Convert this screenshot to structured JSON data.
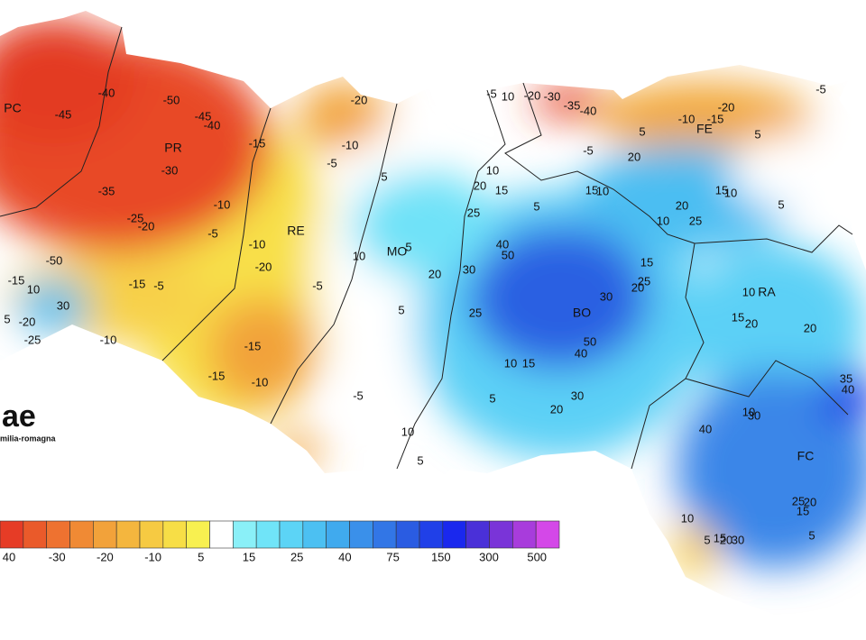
{
  "logo": {
    "text": "ae",
    "subtitle": "milia-romagna"
  },
  "provinces": [
    {
      "label": "PC"
    },
    {
      "label": "PR"
    },
    {
      "label": "RE"
    },
    {
      "label": "MO"
    },
    {
      "label": "BO"
    },
    {
      "label": "FE"
    },
    {
      "label": "RA"
    },
    {
      "label": "FC"
    }
  ],
  "contour_labels": [
    "-45",
    "-40",
    "-50",
    "-45",
    "-40",
    "-30",
    "-35",
    "-25",
    "-20",
    "-10",
    "-5",
    "-15",
    "-5",
    "-50",
    "-15",
    "10",
    "30",
    "-20",
    "-25",
    "5",
    "-10",
    "-20",
    "-10",
    "-5",
    "-15",
    "-10",
    "-20",
    "-15",
    "-10",
    "-15",
    "-5",
    "5",
    "10",
    "5",
    "20",
    "5",
    "-5",
    "10",
    "5",
    "10",
    "20",
    "15",
    "25",
    "5",
    "40",
    "50",
    "30",
    "25",
    "30",
    "20",
    "25",
    "15",
    "50",
    "40",
    "10",
    "15",
    "5",
    "30",
    "20",
    "-5",
    "10",
    "-20",
    "-30",
    "-35",
    "-40",
    "-20",
    "-10",
    "-15",
    "5",
    "-5",
    "5",
    "20",
    "-5",
    "15",
    "10",
    "10",
    "20",
    "25",
    "15",
    "10",
    "5",
    "10",
    "15",
    "20",
    "20",
    "35",
    "40",
    "40",
    "10",
    "30",
    "25",
    "20",
    "15",
    "10",
    "5",
    "15",
    "20",
    "30",
    "5"
  ],
  "legend": {
    "labels": [
      40,
      -30,
      -20,
      -10,
      5,
      15,
      25,
      40,
      75,
      150,
      300,
      500
    ],
    "colors": [
      "#e63c26",
      "#ea5a2a",
      "#ee7230",
      "#f08a34",
      "#f2a23a",
      "#f4b63e",
      "#f6ca42",
      "#f7de46",
      "#f8f050",
      "#ffffff",
      "#8af0f8",
      "#70e4f8",
      "#5cd4f6",
      "#4cc0f2",
      "#40aaee",
      "#3a90ea",
      "#3276e6",
      "#2a5ce2",
      "#2040e8",
      "#1a28ee",
      "#4a30d8",
      "#7a34d8",
      "#a83cdc",
      "#d448e8"
    ]
  }
}
